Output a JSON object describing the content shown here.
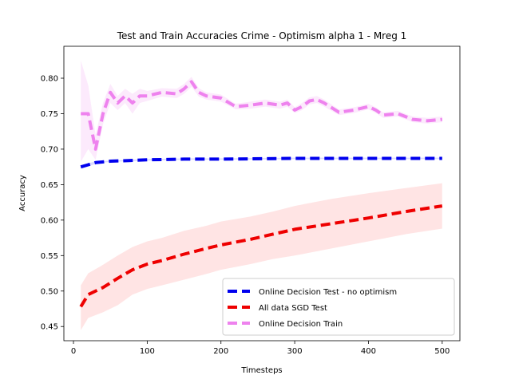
{
  "chart_data": {
    "type": "line",
    "title": "Test and Train Accuracies Crime - Optimism alpha 1 - Mreg 1",
    "xlabel": "Timesteps",
    "ylabel": "Accuracy",
    "xlim": [
      -13,
      524
    ],
    "ylim": [
      0.43,
      0.845
    ],
    "xticks": [
      0,
      100,
      200,
      300,
      400,
      500
    ],
    "xtick_labels": [
      "0",
      "100",
      "200",
      "300",
      "400",
      "500"
    ],
    "yticks": [
      0.45,
      0.5,
      0.55,
      0.6,
      0.65,
      0.7,
      0.75,
      0.8
    ],
    "ytick_labels": [
      "0.45",
      "0.50",
      "0.55",
      "0.60",
      "0.65",
      "0.70",
      "0.75",
      "0.80"
    ],
    "legend_position": "lower-right",
    "series": [
      {
        "name": "Online Decision Test - no optimism",
        "color": "#0000ee",
        "band_color": "#9999ff",
        "x": [
          10,
          20,
          30,
          40,
          50,
          75,
          100,
          150,
          200,
          300,
          400,
          500
        ],
        "values": [
          0.675,
          0.678,
          0.681,
          0.682,
          0.683,
          0.684,
          0.685,
          0.686,
          0.686,
          0.687,
          0.687,
          0.687
        ],
        "lower": [
          0.673,
          0.676,
          0.679,
          0.681,
          0.682,
          0.683,
          0.684,
          0.685,
          0.685,
          0.686,
          0.686,
          0.686
        ],
        "upper": [
          0.677,
          0.68,
          0.683,
          0.683,
          0.684,
          0.685,
          0.686,
          0.687,
          0.687,
          0.688,
          0.688,
          0.688
        ]
      },
      {
        "name": "All data SGD Test",
        "color": "#ee0000",
        "band_color": "#ffb3b3",
        "x": [
          10,
          20,
          40,
          60,
          80,
          100,
          120,
          150,
          180,
          200,
          240,
          270,
          300,
          350,
          400,
          450,
          500
        ],
        "values": [
          0.478,
          0.495,
          0.505,
          0.518,
          0.53,
          0.538,
          0.543,
          0.552,
          0.56,
          0.565,
          0.573,
          0.58,
          0.587,
          0.595,
          0.603,
          0.612,
          0.62
        ],
        "lower": [
          0.445,
          0.462,
          0.47,
          0.48,
          0.495,
          0.503,
          0.508,
          0.516,
          0.524,
          0.53,
          0.538,
          0.545,
          0.55,
          0.56,
          0.57,
          0.58,
          0.588
        ],
        "upper": [
          0.508,
          0.525,
          0.537,
          0.55,
          0.562,
          0.57,
          0.575,
          0.585,
          0.592,
          0.598,
          0.605,
          0.612,
          0.62,
          0.63,
          0.638,
          0.645,
          0.652
        ]
      },
      {
        "name": "Online Decision Train",
        "color": "#ee82ee",
        "band_color": "#f5c2f5",
        "x": [
          10,
          20,
          30,
          40,
          50,
          60,
          70,
          80,
          90,
          100,
          120,
          140,
          150,
          160,
          170,
          180,
          200,
          220,
          240,
          260,
          280,
          290,
          300,
          310,
          320,
          330,
          340,
          360,
          380,
          400,
          410,
          420,
          440,
          460,
          480,
          500
        ],
        "values": [
          0.75,
          0.75,
          0.7,
          0.75,
          0.78,
          0.765,
          0.775,
          0.765,
          0.775,
          0.775,
          0.78,
          0.778,
          0.785,
          0.795,
          0.78,
          0.775,
          0.772,
          0.76,
          0.762,
          0.765,
          0.762,
          0.765,
          0.755,
          0.76,
          0.768,
          0.77,
          0.765,
          0.752,
          0.755,
          0.76,
          0.755,
          0.748,
          0.75,
          0.742,
          0.74,
          0.742
        ],
        "lower": [
          0.682,
          0.7,
          0.685,
          0.735,
          0.765,
          0.755,
          0.765,
          0.75,
          0.765,
          0.768,
          0.774,
          0.772,
          0.778,
          0.788,
          0.774,
          0.77,
          0.767,
          0.756,
          0.757,
          0.76,
          0.757,
          0.76,
          0.751,
          0.755,
          0.763,
          0.765,
          0.76,
          0.748,
          0.751,
          0.756,
          0.751,
          0.744,
          0.746,
          0.738,
          0.736,
          0.738
        ],
        "upper": [
          0.825,
          0.79,
          0.72,
          0.765,
          0.792,
          0.775,
          0.785,
          0.778,
          0.785,
          0.782,
          0.786,
          0.785,
          0.792,
          0.802,
          0.786,
          0.78,
          0.777,
          0.764,
          0.767,
          0.77,
          0.767,
          0.77,
          0.759,
          0.765,
          0.773,
          0.775,
          0.77,
          0.756,
          0.759,
          0.764,
          0.759,
          0.752,
          0.754,
          0.746,
          0.744,
          0.746
        ]
      }
    ]
  }
}
